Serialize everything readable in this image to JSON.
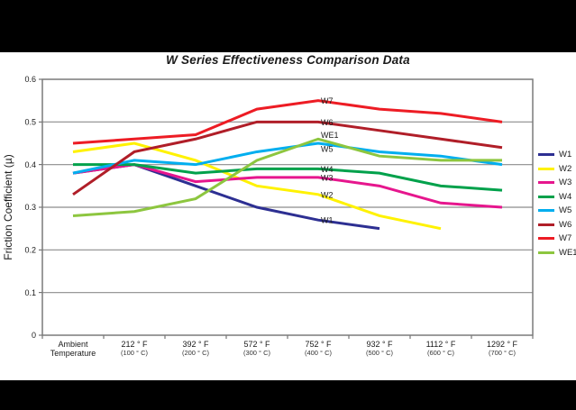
{
  "window": {
    "title": "W Series Effectiveness Comparison Data"
  },
  "colors": {
    "background": "#000000",
    "canvas": "#FFFFFF",
    "grid": "#8C8C8C",
    "plot_border": "#7A7A7A",
    "axis": "#595959",
    "text": "#1A1A1A"
  },
  "chart_data": {
    "type": "line",
    "title": "W Series Effectiveness Comparison Data",
    "xlabel": "",
    "ylabel": "Friction Coefficient (µ)",
    "ylim": [
      0,
      0.6
    ],
    "ytick_labels": [
      "0",
      "0.1",
      "0.2",
      "0.3",
      "0.4",
      "0.5",
      "0.6"
    ],
    "grid": "horizontal",
    "legend_position": "right",
    "categories": [
      "Ambient Temperature",
      "212 °F (100 °C)",
      "392 °F (200 °C)",
      "572 °F (300 °C)",
      "752 °F (400 °C)",
      "932 °F (500 °C)",
      "1112 °F (600 °C)",
      "1292 °F (700 °C)"
    ],
    "xtick_labels": [
      {
        "line1": "Ambient",
        "line2": "Temperature",
        "line2_small": false
      },
      {
        "line1": "212 ° F",
        "line2": "(100 ° C)",
        "line2_small": true
      },
      {
        "line1": "392 ° F",
        "line2": "(200 ° C)",
        "line2_small": true
      },
      {
        "line1": "572 ° F",
        "line2": "(300 ° C)",
        "line2_small": true
      },
      {
        "line1": "752 ° F",
        "line2": "(400 ° C)",
        "line2_small": true
      },
      {
        "line1": "932 ° F",
        "line2": "(500 ° C)",
        "line2_small": true
      },
      {
        "line1": "1112 ° F",
        "line2": "(600 ° C)",
        "line2_small": true
      },
      {
        "line1": "1292 ° F",
        "line2": "(700 ° C)",
        "line2_small": true
      }
    ],
    "series": [
      {
        "name": "W1",
        "color": "#2D2F92",
        "values": [
          0.38,
          0.4,
          0.35,
          0.3,
          0.27,
          0.25,
          null,
          null
        ]
      },
      {
        "name": "W2",
        "color": "#FFF200",
        "values": [
          0.43,
          0.45,
          0.41,
          0.35,
          0.33,
          0.28,
          0.25,
          null
        ]
      },
      {
        "name": "W3",
        "color": "#E6168D",
        "values": [
          0.38,
          0.4,
          0.36,
          0.37,
          0.37,
          0.35,
          0.31,
          0.3
        ]
      },
      {
        "name": "W4",
        "color": "#00A14B",
        "values": [
          0.4,
          0.4,
          0.38,
          0.39,
          0.39,
          0.38,
          0.35,
          0.34
        ]
      },
      {
        "name": "W5",
        "color": "#00AEEF",
        "values": [
          0.38,
          0.41,
          0.4,
          0.43,
          0.45,
          0.43,
          0.42,
          0.4
        ]
      },
      {
        "name": "W6",
        "color": "#B01E28",
        "values": [
          0.33,
          0.43,
          0.46,
          0.5,
          0.5,
          0.48,
          0.46,
          0.44
        ]
      },
      {
        "name": "W7",
        "color": "#ED1C24",
        "values": [
          0.45,
          0.46,
          0.47,
          0.53,
          0.55,
          0.53,
          0.52,
          0.5
        ]
      },
      {
        "name": "WE1",
        "color": "#8DC63F",
        "values": [
          0.28,
          0.29,
          0.32,
          0.41,
          0.46,
          0.42,
          0.41,
          0.41
        ]
      }
    ],
    "series_point_labels": {
      "at_category_index": 4
    },
    "legend_items": [
      "W1",
      "W2",
      "W3",
      "W4",
      "W5",
      "W6",
      "W7",
      "WE1"
    ]
  }
}
